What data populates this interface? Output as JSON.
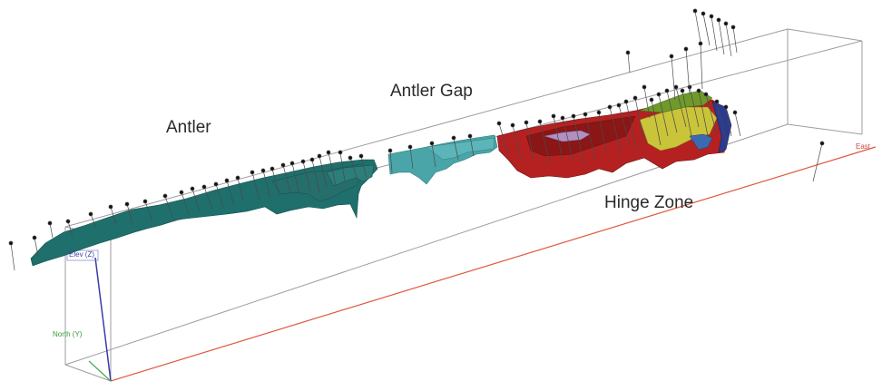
{
  "labels": {
    "antler": "Antler",
    "antler_gap": "Antler Gap",
    "hinge_zone": "Hinge Zone"
  },
  "axes": {
    "east": "East",
    "elev": "Elev (Z)",
    "north": "North (Y)"
  },
  "colors": {
    "antler_surface": "#1f6f6c",
    "antler_gap_surface": "#4aa5a8",
    "hinge_surface": "#b52121",
    "hinge_accent_yellow": "#c9c43a",
    "hinge_accent_green": "#6f9a2b",
    "hinge_accent_blue": "#2a3b8f",
    "east_axis": "#e0573f",
    "elev_axis": "#3a3aa8",
    "north_axis": "#4caa4c",
    "box_lines": "#9a9a9a"
  }
}
